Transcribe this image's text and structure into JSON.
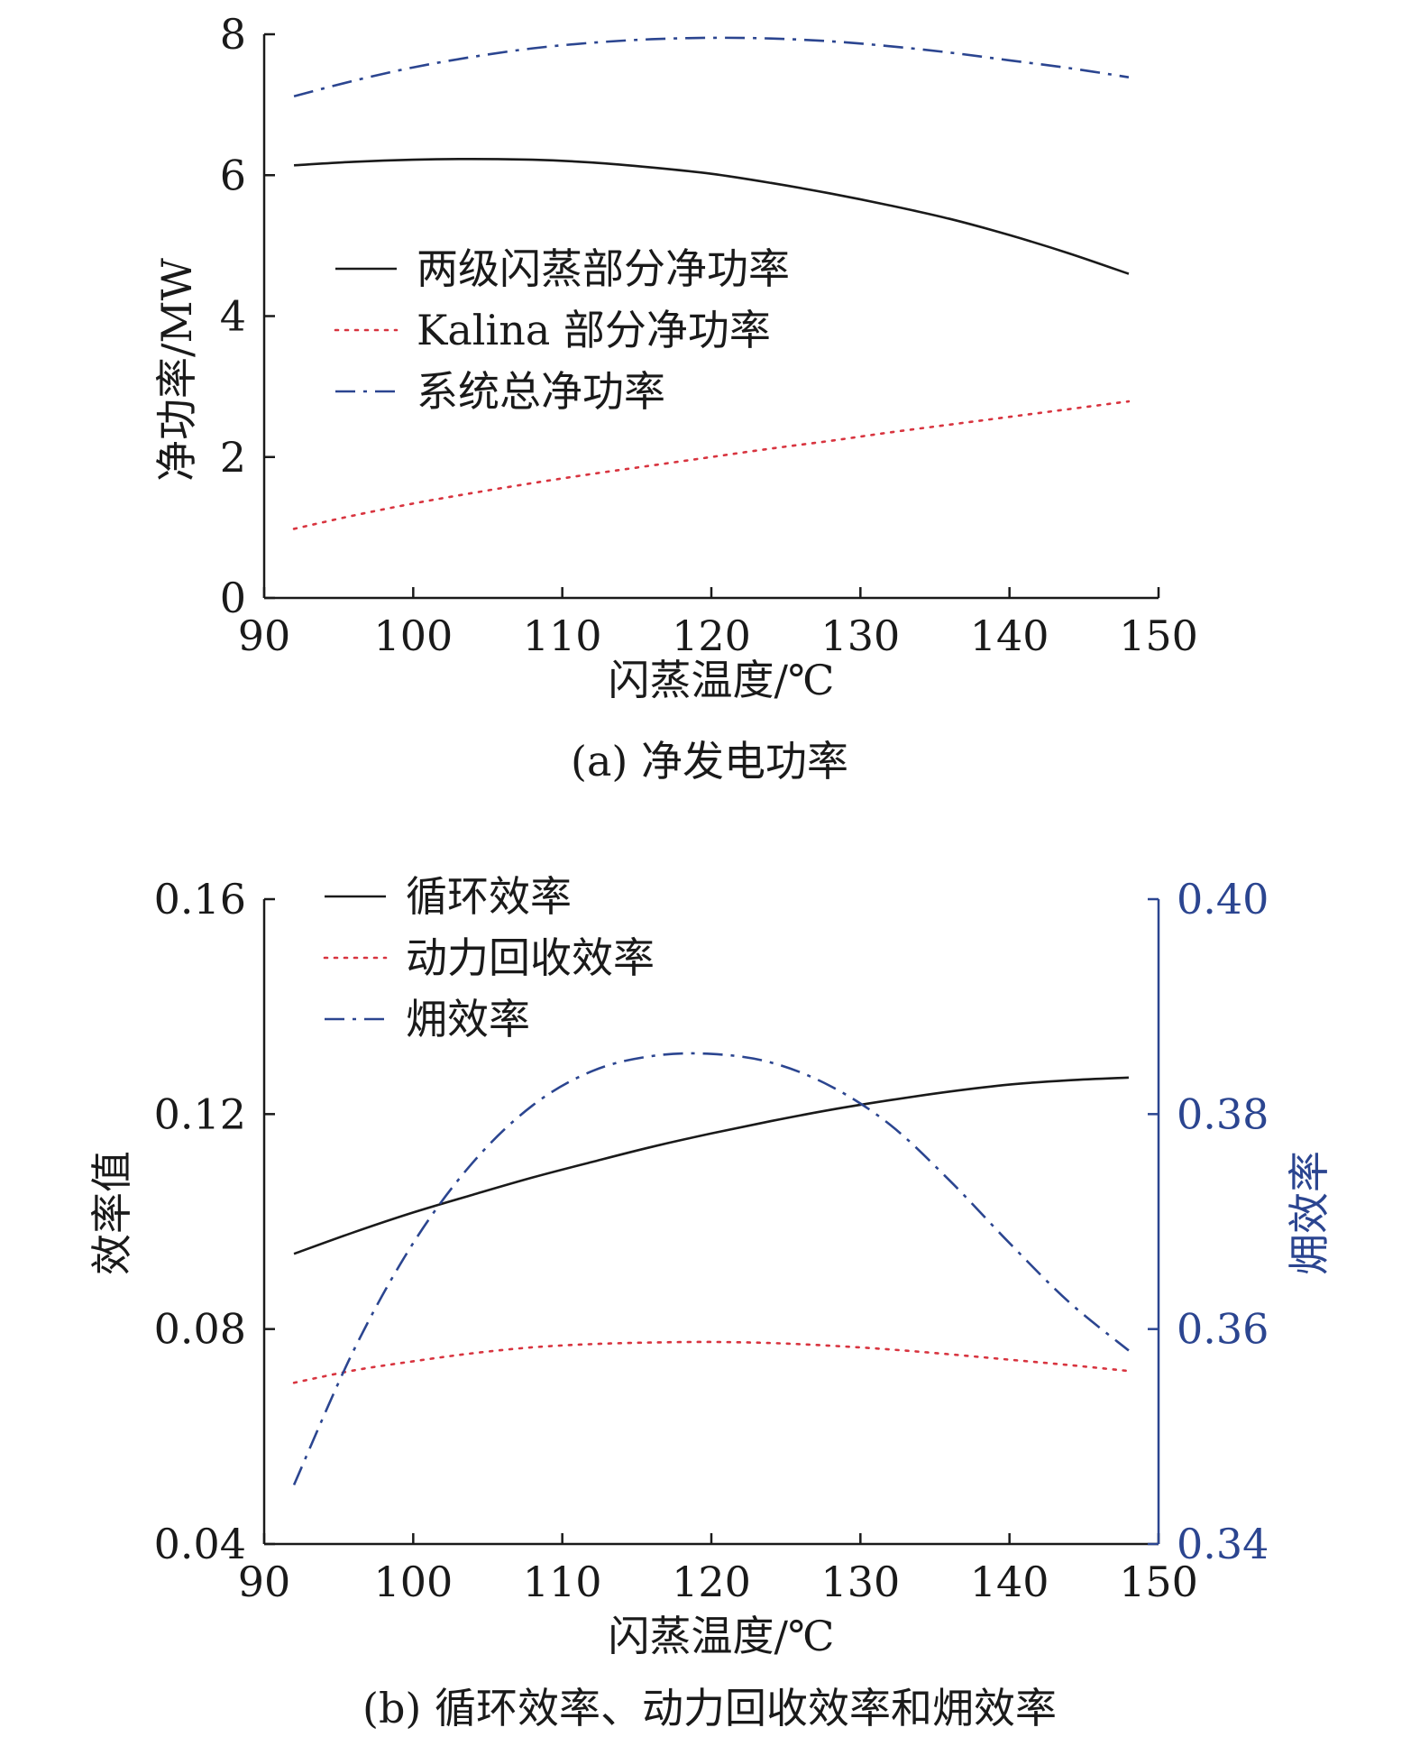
{
  "chart_data": [
    {
      "type": "line",
      "caption": "(a) 净发电功率",
      "xlabel": "闪蒸温度/℃",
      "ylabel": "净功率/MW",
      "xlim": [
        90,
        150
      ],
      "ylim": [
        0,
        8
      ],
      "xticks": [
        90,
        100,
        110,
        120,
        130,
        140,
        150
      ],
      "yticks": [
        0,
        2,
        4,
        6,
        8
      ],
      "legend_position": "middle-left",
      "series": [
        {
          "name": "两级闪蒸部分净功率",
          "style": "solid",
          "color": "#1a1a1a",
          "x": [
            92,
            96,
            100,
            104,
            108,
            112,
            116,
            120,
            124,
            128,
            132,
            136,
            140,
            144,
            148
          ],
          "y": [
            6.14,
            6.19,
            6.22,
            6.23,
            6.22,
            6.18,
            6.11,
            6.02,
            5.89,
            5.74,
            5.57,
            5.38,
            5.15,
            4.89,
            4.6
          ]
        },
        {
          "name": "Kalina 部分净功率",
          "style": "dotted",
          "color": "#d8343f",
          "x": [
            92,
            96,
            100,
            104,
            108,
            112,
            116,
            120,
            124,
            128,
            132,
            136,
            140,
            144,
            148
          ],
          "y": [
            0.98,
            1.17,
            1.34,
            1.49,
            1.63,
            1.76,
            1.88,
            2.0,
            2.12,
            2.23,
            2.35,
            2.46,
            2.57,
            2.68,
            2.79
          ]
        },
        {
          "name": "系统总净功率",
          "style": "dashdot",
          "color": "#2b4590",
          "x": [
            92,
            96,
            100,
            104,
            108,
            112,
            116,
            120,
            124,
            128,
            132,
            136,
            140,
            144,
            148
          ],
          "y": [
            7.12,
            7.34,
            7.53,
            7.68,
            7.8,
            7.88,
            7.93,
            7.95,
            7.94,
            7.9,
            7.83,
            7.74,
            7.63,
            7.52,
            7.39
          ]
        }
      ]
    },
    {
      "type": "line",
      "caption": "(b) 循环效率、动力回收效率和㶲效率",
      "xlabel": "闪蒸温度/℃",
      "ylabel": "效率值",
      "y2label": "㶲效率",
      "y2color": "#2b4590",
      "xlim": [
        90,
        150
      ],
      "ylim": [
        0.04,
        0.16
      ],
      "y2lim": [
        0.34,
        0.4
      ],
      "xticks": [
        90,
        100,
        110,
        120,
        130,
        140,
        150
      ],
      "yticks": [
        "0.04",
        "0.08",
        "0.12",
        "0.16"
      ],
      "y2ticks": [
        "0.34",
        "0.36",
        "0.38",
        "0.40"
      ],
      "legend_position": "top-left",
      "series": [
        {
          "name": "循环效率",
          "style": "solid",
          "color": "#1a1a1a",
          "axis": "left",
          "x": [
            92,
            96,
            100,
            104,
            108,
            112,
            116,
            120,
            124,
            128,
            132,
            136,
            140,
            144,
            148
          ],
          "y": [
            0.094,
            0.098,
            0.1017,
            0.105,
            0.1082,
            0.1111,
            0.1139,
            0.1164,
            0.1187,
            0.1208,
            0.1226,
            0.1242,
            0.1255,
            0.1263,
            0.1268
          ]
        },
        {
          "name": "动力回收效率",
          "style": "dotted",
          "color": "#d8343f",
          "axis": "left",
          "x": [
            92,
            96,
            100,
            104,
            108,
            112,
            116,
            120,
            124,
            128,
            132,
            136,
            140,
            144,
            148
          ],
          "y": [
            0.07,
            0.0723,
            0.074,
            0.0755,
            0.0766,
            0.0772,
            0.0775,
            0.0776,
            0.0774,
            0.0769,
            0.0762,
            0.0753,
            0.0743,
            0.0733,
            0.0722
          ]
        },
        {
          "name": "㶲效率",
          "style": "dashdot",
          "color": "#2b4590",
          "axis": "right",
          "x": [
            92,
            96,
            100,
            104,
            108,
            112,
            116,
            120,
            124,
            128,
            132,
            136,
            140,
            144,
            148
          ],
          "y": [
            0.3455,
            0.358,
            0.368,
            0.3755,
            0.3808,
            0.384,
            0.3854,
            0.3856,
            0.3848,
            0.3826,
            0.379,
            0.3738,
            0.368,
            0.3625,
            0.358
          ]
        }
      ]
    }
  ]
}
